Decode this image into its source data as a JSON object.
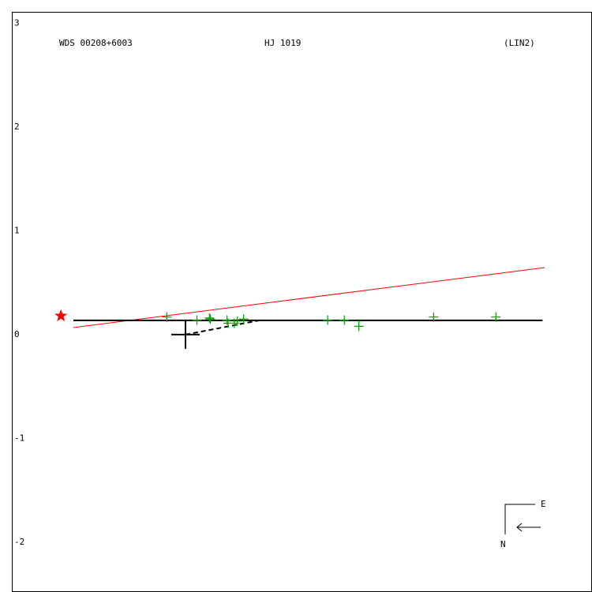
{
  "chart_data": {
    "type": "scatter",
    "labels": [
      "WDS 00208+6003",
      "HJ 1019",
      "(LIN2)"
    ],
    "xlim": [
      -1.673,
      3.916
    ],
    "ylim": [
      -2.48,
      3.11
    ],
    "yticks": [
      3,
      2,
      1,
      0,
      -1,
      -2
    ],
    "fit_line": {
      "color": "#ff0000",
      "x": [
        -1.08,
        3.46
      ],
      "y": [
        0.068,
        0.646
      ]
    },
    "orbit_line": {
      "color": "#000000",
      "x": [
        -1.08,
        3.44
      ],
      "y": [
        0.137,
        0.137
      ]
    },
    "dashed_line": {
      "color": "#000000",
      "x": [
        0,
        0.71
      ],
      "y": [
        0,
        0.137
      ]
    },
    "primary": {
      "color": "#000000",
      "x": 0,
      "y": 0
    },
    "star": {
      "color": "#ff0000",
      "x": -1.2,
      "y": 0.18
    },
    "observations": {
      "color": "#00a000",
      "x": [
        -0.18,
        0.11,
        0.23,
        0.24,
        0.4,
        0.41,
        0.47,
        0.5,
        0.56,
        1.37,
        1.53,
        1.67,
        2.39,
        2.99
      ],
      "y": [
        0.17,
        0.14,
        0.16,
        0.15,
        0.14,
        0.11,
        0.11,
        0.13,
        0.15,
        0.14,
        0.14,
        0.08,
        0.17,
        0.17
      ]
    },
    "compass": {
      "east": "E",
      "north": "N"
    }
  }
}
